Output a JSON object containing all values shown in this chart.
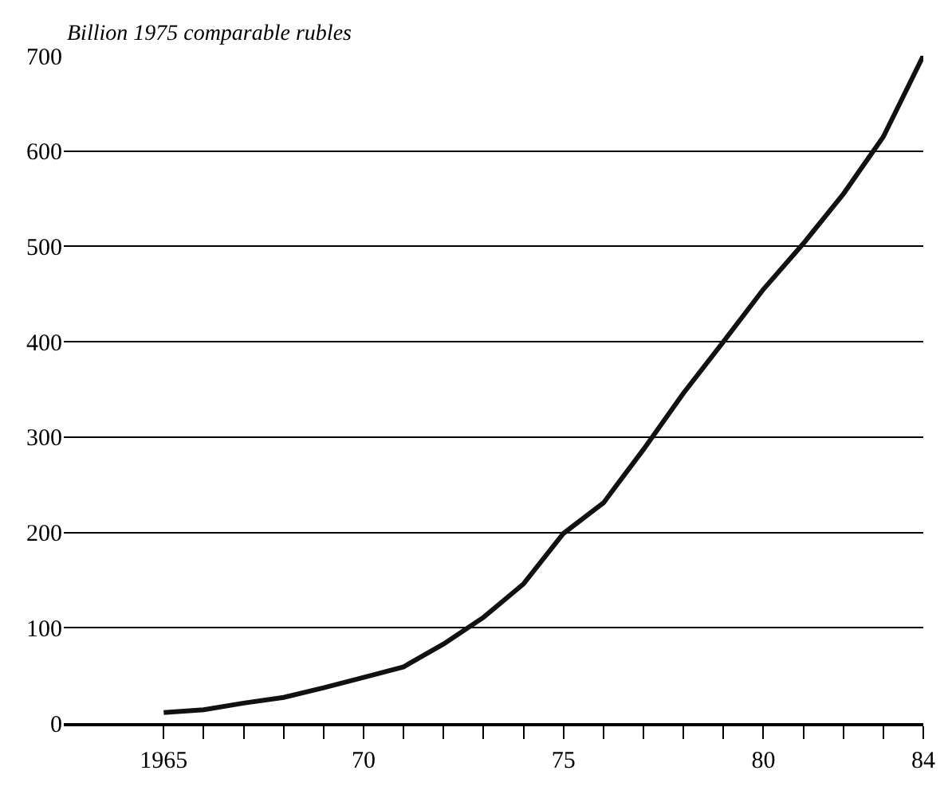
{
  "chart_data": {
    "type": "line",
    "ylabel": "Billion 1975 comparable rubles",
    "x": [
      1965,
      1966,
      1967,
      1968,
      1969,
      1970,
      1971,
      1972,
      1973,
      1974,
      1975,
      1976,
      1977,
      1978,
      1979,
      1980,
      1981,
      1982,
      1983,
      1984
    ],
    "series": [
      {
        "color": "#111111",
        "values": [
          11,
          14,
          21,
          27,
          37,
          48,
          59,
          83,
          111,
          146,
          199,
          231,
          287,
          346,
          400,
          455,
          503,
          555,
          615,
          700
        ]
      }
    ],
    "xlim": [
      1962.5,
      1984
    ],
    "ylim": [
      0,
      700
    ],
    "xticks": [
      {
        "value": 1965,
        "label": "1965"
      },
      {
        "value": 1966,
        "label": null
      },
      {
        "value": 1967,
        "label": null
      },
      {
        "value": 1968,
        "label": null
      },
      {
        "value": 1969,
        "label": null
      },
      {
        "value": 1970,
        "label": "70"
      },
      {
        "value": 1971,
        "label": null
      },
      {
        "value": 1972,
        "label": null
      },
      {
        "value": 1973,
        "label": null
      },
      {
        "value": 1974,
        "label": null
      },
      {
        "value": 1975,
        "label": "75"
      },
      {
        "value": 1976,
        "label": null
      },
      {
        "value": 1977,
        "label": null
      },
      {
        "value": 1978,
        "label": null
      },
      {
        "value": 1979,
        "label": null
      },
      {
        "value": 1980,
        "label": "80"
      },
      {
        "value": 1981,
        "label": null
      },
      {
        "value": 1982,
        "label": null
      },
      {
        "value": 1983,
        "label": null
      },
      {
        "value": 1984,
        "label": "84"
      }
    ],
    "yticks": [
      0,
      100,
      200,
      300,
      400,
      500,
      600,
      700
    ],
    "grid": "y",
    "line_style": "solid",
    "marker": "none",
    "legend": false
  }
}
